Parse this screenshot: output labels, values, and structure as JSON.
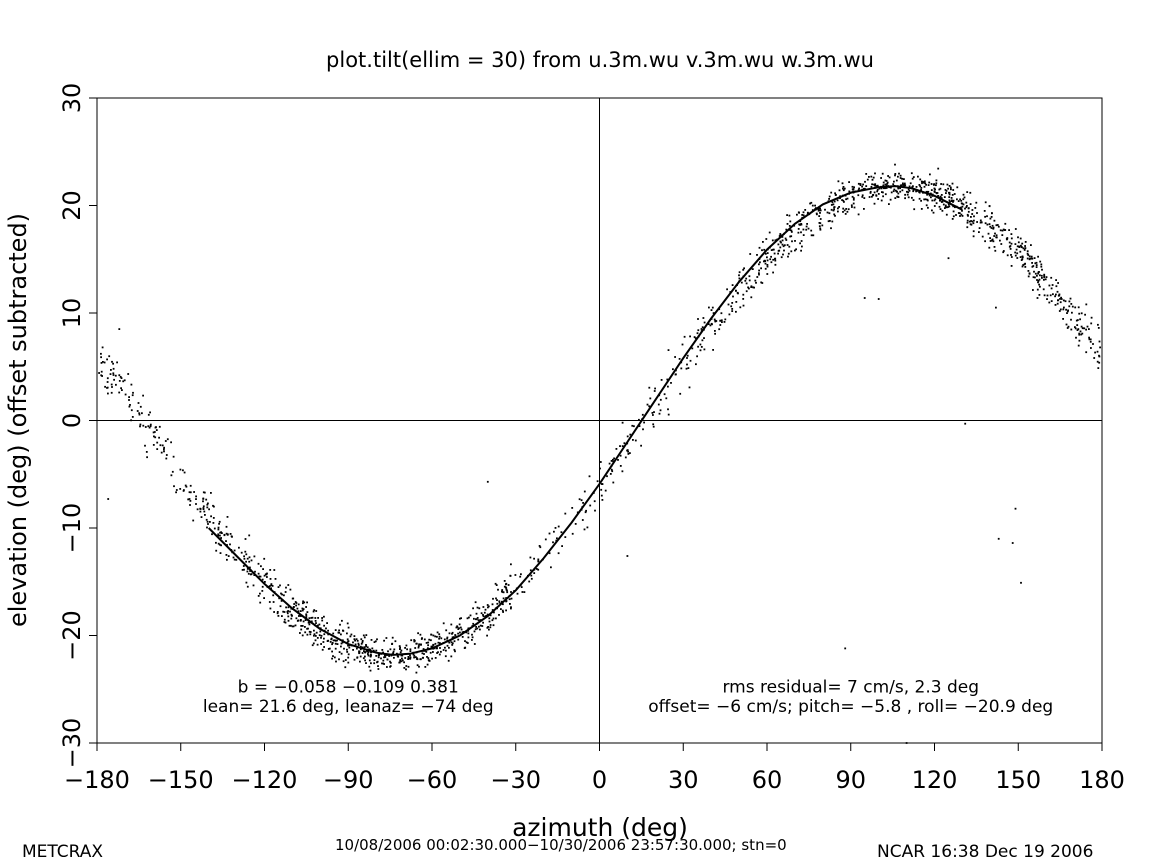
{
  "chart_data": {
    "type": "scatter",
    "title": "plot.tilt(ellim = 30) from u.3m.wu v.3m.wu w.3m.wu",
    "xlabel": "azimuth (deg)",
    "ylabel": "elevation (deg)  (offset subtracted)",
    "xlim": [
      -180,
      180
    ],
    "ylim": [
      -30,
      30
    ],
    "xticks": [
      -180,
      -150,
      -120,
      -90,
      -60,
      -30,
      0,
      30,
      60,
      90,
      120,
      150,
      180
    ],
    "yticks": [
      -30,
      -20,
      -10,
      0,
      10,
      20,
      30
    ],
    "xtick_labels": [
      "−180",
      "−150",
      "−120",
      "−90",
      "−60",
      "−30",
      "0",
      "30",
      "60",
      "90",
      "120",
      "150",
      "180"
    ],
    "ytick_labels": [
      "−30",
      "−20",
      "−10",
      "0",
      "10",
      "20",
      "30"
    ],
    "grid": false,
    "reference_lines": {
      "x": 0,
      "y": 0
    },
    "series": [
      {
        "kind": "fit_curve",
        "x": [
          -140,
          -130,
          -120,
          -110,
          -100,
          -90,
          -80,
          -74,
          -68,
          -60,
          -50,
          -40,
          -30,
          -20,
          -10,
          0,
          10,
          20,
          30,
          40,
          50,
          60,
          70,
          80,
          90,
          100,
          106,
          112,
          120,
          130
        ],
        "y": [
          -10.0,
          -12.6,
          -15.2,
          -17.5,
          -19.4,
          -20.8,
          -21.6,
          -21.8,
          -21.7,
          -21.2,
          -20.0,
          -18.2,
          -15.8,
          -12.8,
          -9.5,
          -5.9,
          -2.0,
          1.9,
          5.8,
          9.5,
          12.9,
          15.9,
          18.3,
          20.1,
          21.2,
          21.7,
          21.8,
          21.6,
          20.9,
          19.6
        ]
      }
    ],
    "annotations": [
      {
        "text": "b = −0.058 −0.109  0.381",
        "x": -90,
        "y": -25.3
      },
      {
        "text": "lean= 21.6 deg, leanaz= −74 deg",
        "x": -90,
        "y": -27.1
      },
      {
        "text": "rms residual= 7 cm/s, 2.3 deg",
        "x": 90,
        "y": -25.3
      },
      {
        "text": "offset= −6 cm/s; pitch=  −5.8 , roll= −20.9 deg",
        "x": 90,
        "y": -27.1
      }
    ]
  },
  "footer": {
    "left": "METCRAX",
    "middle": "10/08/2006 00:02:30.000−10/30/2006 23:57:30.000; stn=0",
    "right": "NCAR 16:38 Dec 19 2006"
  }
}
